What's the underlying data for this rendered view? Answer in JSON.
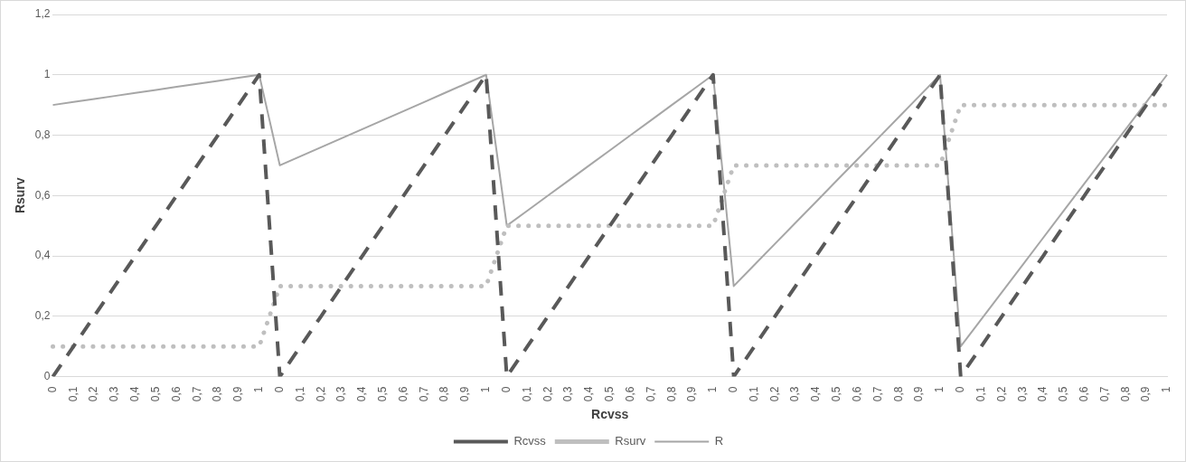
{
  "chart_data": {
    "type": "line",
    "xlabel": "Rcvss",
    "ylabel": "Rsurv",
    "categories": [
      "0",
      "0,1",
      "0,2",
      "0,3",
      "0,4",
      "0,5",
      "0,6",
      "0,7",
      "0,8",
      "0,9",
      "1",
      "0",
      "0,1",
      "0,2",
      "0,3",
      "0,4",
      "0,5",
      "0,6",
      "0,7",
      "0,8",
      "0,9",
      "1",
      "0",
      "0,1",
      "0,2",
      "0,3",
      "0,4",
      "0,5",
      "0,6",
      "0,7",
      "0,8",
      "0,9",
      "1",
      "0",
      "0,1",
      "0,2",
      "0,3",
      "0,4",
      "0,5",
      "0,6",
      "0,7",
      "0,8",
      "0,9",
      "1",
      "0",
      "0,1",
      "0,2",
      "0,3",
      "0,4",
      "0,5",
      "0,6",
      "0,7",
      "0,8",
      "0,9",
      "1"
    ],
    "series": [
      {
        "name": "Rcvss",
        "color": "#595959",
        "line_style": "dashed",
        "values": [
          0,
          0.1,
          0.2,
          0.3,
          0.4,
          0.5,
          0.6,
          0.7,
          0.8,
          0.9,
          1,
          0,
          0.1,
          0.2,
          0.3,
          0.4,
          0.5,
          0.6,
          0.7,
          0.8,
          0.9,
          1,
          0,
          0.1,
          0.2,
          0.3,
          0.4,
          0.5,
          0.6,
          0.7,
          0.8,
          0.9,
          1,
          0,
          0.1,
          0.2,
          0.3,
          0.4,
          0.5,
          0.6,
          0.7,
          0.8,
          0.9,
          1,
          0,
          0.1,
          0.2,
          0.3,
          0.4,
          0.5,
          0.6,
          0.7,
          0.8,
          0.9,
          1
        ]
      },
      {
        "name": "Rsurv",
        "color": "#bfbfbf",
        "line_style": "dotted",
        "values": [
          0.1,
          0.1,
          0.1,
          0.1,
          0.1,
          0.1,
          0.1,
          0.1,
          0.1,
          0.1,
          0.1,
          0.3,
          0.3,
          0.3,
          0.3,
          0.3,
          0.3,
          0.3,
          0.3,
          0.3,
          0.3,
          0.3,
          0.5,
          0.5,
          0.5,
          0.5,
          0.5,
          0.5,
          0.5,
          0.5,
          0.5,
          0.5,
          0.5,
          0.7,
          0.7,
          0.7,
          0.7,
          0.7,
          0.7,
          0.7,
          0.7,
          0.7,
          0.7,
          0.7,
          0.9,
          0.9,
          0.9,
          0.9,
          0.9,
          0.9,
          0.9,
          0.9,
          0.9,
          0.9,
          0.9
        ]
      },
      {
        "name": "R",
        "color": "#a6a6a6",
        "line_style": "solid",
        "values": [
          0.9,
          0.91,
          0.92,
          0.93,
          0.94,
          0.95,
          0.96,
          0.97,
          0.98,
          0.99,
          1,
          0.7,
          0.73,
          0.76,
          0.79,
          0.82,
          0.85,
          0.88,
          0.91,
          0.94,
          0.97,
          1,
          0.5,
          0.55,
          0.6,
          0.65,
          0.7,
          0.75,
          0.8,
          0.85,
          0.9,
          0.95,
          1,
          0.3,
          0.37,
          0.44,
          0.51,
          0.58,
          0.65,
          0.72,
          0.79,
          0.86,
          0.93,
          1,
          0.1,
          0.19,
          0.28,
          0.37,
          0.46,
          0.55,
          0.64,
          0.73,
          0.82,
          0.91,
          1
        ]
      }
    ],
    "ylim": [
      0,
      1.2
    ],
    "yticks": [
      0,
      {
        "value": 0.2,
        "label": "0,2"
      },
      {
        "value": 0.4,
        "label": "0,4"
      },
      {
        "value": 0.6,
        "label": "0,6"
      },
      {
        "value": 0.8,
        "label": "0,8"
      },
      1,
      {
        "value": 1.2,
        "label": "1,2"
      }
    ],
    "grid": "y",
    "legend": "bottom",
    "marker": "none"
  }
}
